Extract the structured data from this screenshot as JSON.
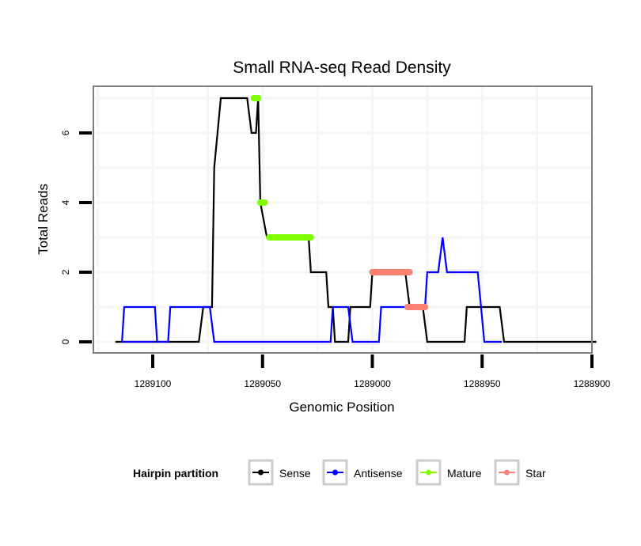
{
  "chart_data": {
    "type": "line",
    "title": "Small RNA-seq Read Density",
    "xlabel": "Genomic Position",
    "ylabel": "Total Reads",
    "xlim": [
      1289117,
      1288898
    ],
    "x_reversed": true,
    "ylim": [
      -0.25,
      7.2
    ],
    "xticks": [
      1289100,
      1289050,
      1289000,
      1288950,
      1288900
    ],
    "xtick_labels": [
      "1289100",
      "1289050",
      "1289000",
      "1288950",
      "1288900"
    ],
    "yticks": [
      0,
      2,
      4,
      6
    ],
    "ytick_labels": [
      "0",
      "2",
      "4",
      "6"
    ],
    "grid": true,
    "legend": {
      "title": "Hairpin partition",
      "position": "bottom",
      "entries": [
        {
          "name": "Sense",
          "color": "#000000"
        },
        {
          "name": "Antisense",
          "color": "#0000ff"
        },
        {
          "name": "Mature",
          "color": "#7fff00"
        },
        {
          "name": "Star",
          "color": "#fa8072"
        }
      ]
    },
    "series": [
      {
        "name": "Sense",
        "color": "#000000",
        "style": "line",
        "points": [
          [
            1289117,
            0
          ],
          [
            1289079,
            0
          ],
          [
            1289077,
            1
          ],
          [
            1289073,
            1
          ],
          [
            1289072,
            5
          ],
          [
            1289069,
            7
          ],
          [
            1289057,
            7
          ],
          [
            1289055,
            6
          ],
          [
            1289053,
            6
          ],
          [
            1289052,
            7
          ],
          [
            1289051,
            4
          ],
          [
            1289048,
            3
          ],
          [
            1289029,
            3
          ],
          [
            1289028,
            2
          ],
          [
            1289021,
            2
          ],
          [
            1289020,
            1
          ],
          [
            1289018,
            1
          ],
          [
            1289017,
            0
          ],
          [
            1289011,
            0
          ],
          [
            1289010,
            1
          ],
          [
            1289001,
            1
          ],
          [
            1289000,
            2
          ],
          [
            1288985,
            2
          ],
          [
            1288983,
            1
          ],
          [
            1288977,
            1
          ],
          [
            1288975,
            0
          ],
          [
            1288958,
            0
          ],
          [
            1288957,
            1
          ],
          [
            1288942,
            1
          ],
          [
            1288940,
            0
          ],
          [
            1288898,
            0
          ]
        ]
      },
      {
        "name": "Antisense",
        "color": "#0000ff",
        "style": "line",
        "points": [
          [
            1289101,
            0
          ],
          [
            1289099,
            0
          ],
          [
            1289114,
            0
          ],
          [
            1289113,
            1
          ],
          [
            1289099,
            1
          ],
          [
            1289098,
            0
          ],
          [
            1289093,
            0
          ],
          [
            1289092,
            1
          ],
          [
            1289074,
            1
          ],
          [
            1289072,
            0
          ],
          [
            1289019,
            0
          ],
          [
            1289018,
            1
          ],
          [
            1289011,
            1
          ],
          [
            1289009,
            0
          ],
          [
            1288997,
            0
          ],
          [
            1288996,
            1
          ],
          [
            1288983,
            1
          ],
          [
            1288982,
            1
          ],
          [
            1288976,
            1
          ],
          [
            1288975,
            2
          ],
          [
            1288970,
            2
          ],
          [
            1288968,
            3
          ],
          [
            1288966,
            2
          ],
          [
            1288952,
            2
          ],
          [
            1288949,
            0
          ],
          [
            1288941,
            0
          ]
        ]
      },
      {
        "name": "Mature",
        "color": "#7fff00",
        "style": "points",
        "segments": [
          {
            "from": 1289054,
            "to": 1289052,
            "y": 7
          },
          {
            "from": 1289051,
            "to": 1289049,
            "y": 4
          },
          {
            "from": 1289047,
            "to": 1289028,
            "y": 3
          }
        ]
      },
      {
        "name": "Star",
        "color": "#fa8072",
        "style": "points",
        "segments": [
          {
            "from": 1289000,
            "to": 1288983,
            "y": 2
          },
          {
            "from": 1288984,
            "to": 1288976,
            "y": 1
          }
        ]
      }
    ]
  }
}
